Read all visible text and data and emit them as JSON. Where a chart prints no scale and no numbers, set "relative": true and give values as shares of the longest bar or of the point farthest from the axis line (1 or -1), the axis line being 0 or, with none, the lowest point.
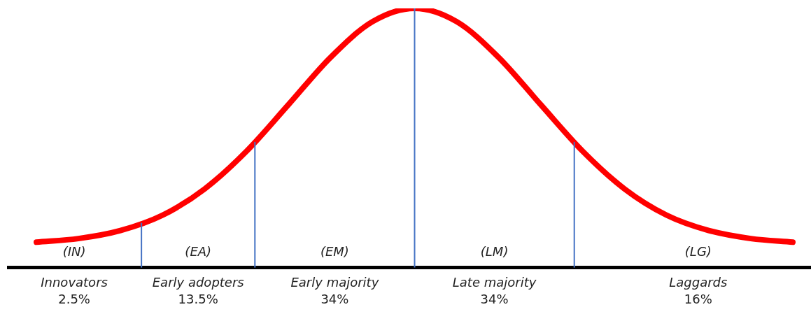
{
  "chart_data": {
    "type": "line",
    "relative": true,
    "categories": [
      null,
      null,
      null,
      null,
      null,
      null,
      null,
      null,
      null,
      null,
      null,
      null,
      null,
      null,
      null,
      null,
      null,
      null,
      null
    ],
    "series": [
      {
        "color": "#ff0000",
        "values": [
          0.098,
          0.112,
          0.143,
          0.202,
          0.303,
          0.449,
          0.629,
          0.811,
          0.949,
          1,
          0.949,
          0.811,
          0.629,
          0.449,
          0.303,
          0.202,
          0.143,
          0.112,
          0.098
        ]
      }
    ],
    "annotations": [
      "(IN)",
      "(EA)",
      "(EM)",
      "(LM)",
      "(LG)",
      "Innovators\n2.5%",
      "Early adopters\n13.5%",
      "Early majority\n34%",
      "Late majority\n34%",
      "Laggards\n16%"
    ],
    "grid": false,
    "legend": false,
    "marker": "none",
    "line_style": "solid"
  }
}
